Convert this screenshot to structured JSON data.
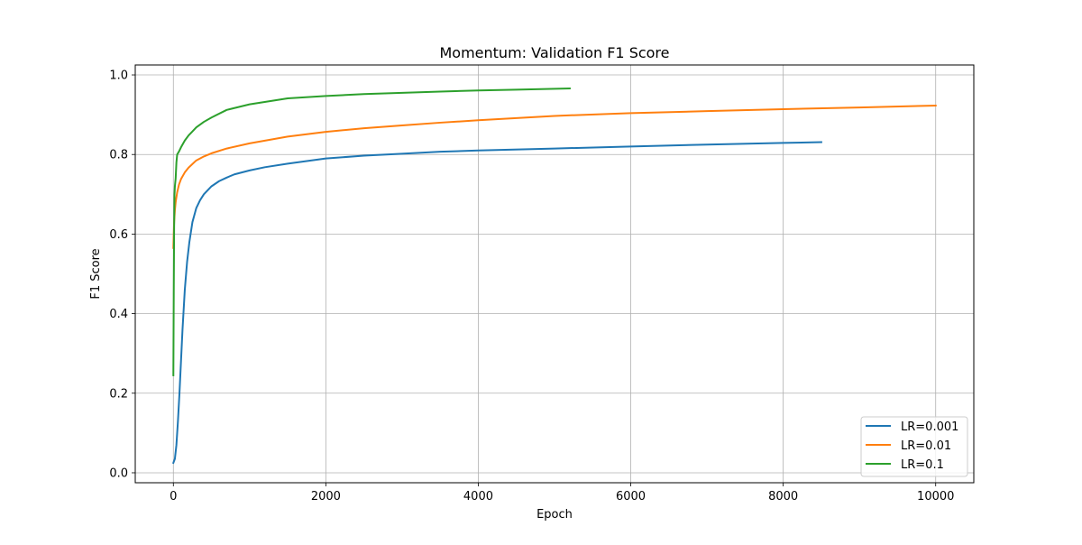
{
  "chart_data": {
    "type": "line",
    "title": "Momentum: Validation F1 Score",
    "xlabel": "Epoch",
    "ylabel": "F1 Score",
    "xlim": [
      -500,
      10500
    ],
    "ylim": [
      -0.025,
      1.025
    ],
    "xticks": [
      0,
      2000,
      4000,
      6000,
      8000,
      10000
    ],
    "yticks": [
      0.0,
      0.2,
      0.4,
      0.6,
      0.8,
      1.0
    ],
    "xtick_labels": [
      "0",
      "2000",
      "4000",
      "6000",
      "8000",
      "10000"
    ],
    "ytick_labels": [
      "0.0",
      "0.2",
      "0.4",
      "0.6",
      "0.8",
      "1.0"
    ],
    "grid": true,
    "legend_position": "lower-right",
    "series": [
      {
        "name": "LR=0.001",
        "color": "#1f77b4",
        "x": [
          0,
          20,
          40,
          60,
          80,
          100,
          120,
          150,
          180,
          210,
          250,
          300,
          350,
          400,
          500,
          600,
          700,
          800,
          1000,
          1200,
          1500,
          2000,
          2500,
          3000,
          3500,
          4000,
          5000,
          6000,
          7000,
          8000,
          8500
        ],
        "y": [
          0.025,
          0.035,
          0.07,
          0.13,
          0.2,
          0.28,
          0.36,
          0.46,
          0.53,
          0.58,
          0.63,
          0.665,
          0.685,
          0.7,
          0.72,
          0.733,
          0.742,
          0.75,
          0.76,
          0.768,
          0.777,
          0.79,
          0.797,
          0.802,
          0.807,
          0.81,
          0.815,
          0.82,
          0.825,
          0.829,
          0.831
        ]
      },
      {
        "name": "LR=0.01",
        "color": "#ff7f0e",
        "x": [
          0,
          5,
          10,
          20,
          30,
          50,
          75,
          100,
          150,
          200,
          300,
          400,
          500,
          700,
          1000,
          1500,
          2000,
          2500,
          3000,
          3500,
          4000,
          5000,
          6000,
          7000,
          8000,
          9000,
          10000
        ],
        "y": [
          0.565,
          0.6,
          0.63,
          0.66,
          0.68,
          0.705,
          0.725,
          0.738,
          0.755,
          0.767,
          0.785,
          0.795,
          0.803,
          0.815,
          0.828,
          0.845,
          0.857,
          0.866,
          0.873,
          0.88,
          0.886,
          0.897,
          0.904,
          0.909,
          0.914,
          0.918,
          0.923
        ]
      },
      {
        "name": "LR=0.1",
        "color": "#2ca02c",
        "x": [
          0,
          5,
          10,
          15,
          20,
          30,
          40,
          50,
          75,
          100,
          150,
          200,
          250,
          300,
          400,
          500,
          700,
          1000,
          1500,
          2000,
          2500,
          3000,
          3500,
          4000,
          4500,
          5200
        ],
        "y": [
          0.245,
          0.45,
          0.62,
          0.7,
          0.72,
          0.74,
          0.78,
          0.8,
          0.808,
          0.818,
          0.835,
          0.848,
          0.858,
          0.868,
          0.882,
          0.893,
          0.912,
          0.926,
          0.941,
          0.947,
          0.952,
          0.955,
          0.958,
          0.961,
          0.963,
          0.966
        ]
      }
    ]
  }
}
